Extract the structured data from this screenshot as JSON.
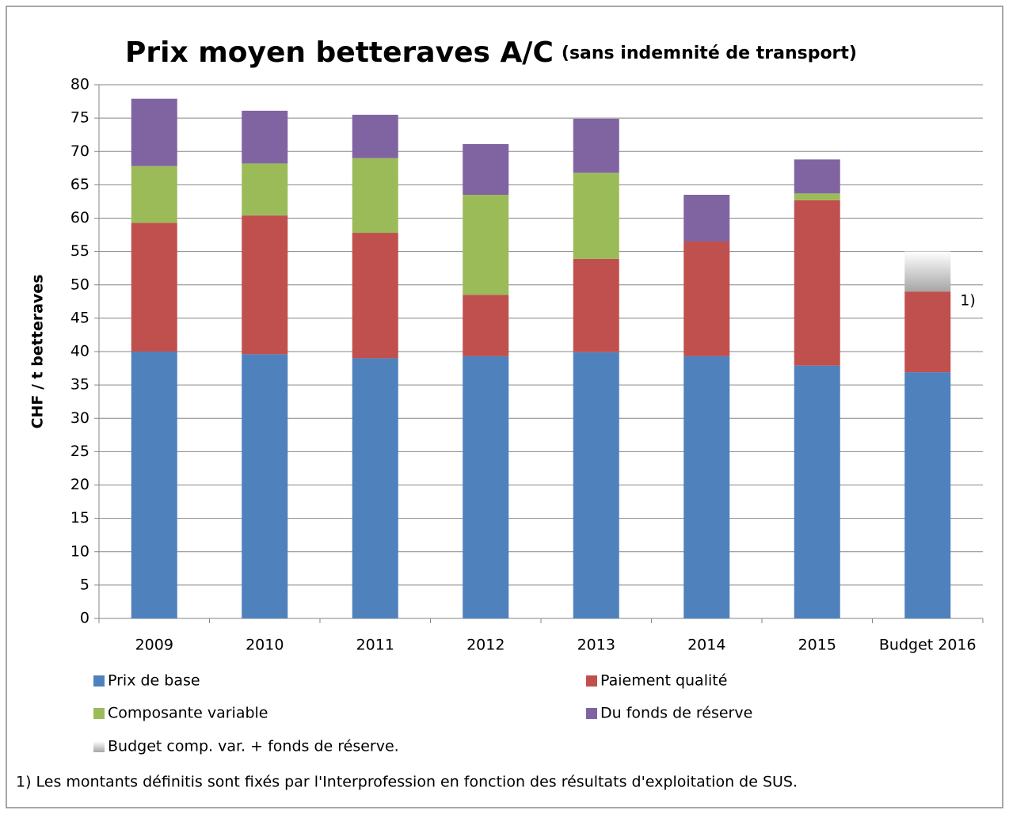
{
  "chart_data": {
    "type": "stacked_bar",
    "title": "Prix moyen betteraves A/C",
    "subtitle": "(sans indemnité de transport)",
    "y_label": "CHF / t betteraves",
    "categories": [
      "2009",
      "2010",
      "2011",
      "2012",
      "2013",
      "2014",
      "2015",
      "Budget 2016"
    ],
    "series": [
      {
        "name": "Prix de base",
        "color": "#4f81bd",
        "values": [
          40.0,
          39.6,
          39.0,
          39.3,
          39.9,
          39.3,
          37.9,
          36.9
        ]
      },
      {
        "name": "Paiement qualité",
        "color": "#c0504d",
        "values": [
          19.3,
          20.8,
          18.8,
          9.2,
          14.0,
          17.2,
          24.8,
          12.1
        ]
      },
      {
        "name": "Composante variable",
        "color": "#9bbb59",
        "values": [
          8.5,
          7.8,
          11.2,
          15.0,
          12.9,
          null,
          1.0,
          null
        ]
      },
      {
        "name": "Du fonds de réserve",
        "color": "#8064a2",
        "values": [
          10.1,
          7.9,
          6.5,
          7.6,
          8.1,
          7.0,
          5.1,
          null
        ]
      },
      {
        "name": "Budget comp. var. + fonds  de réserve.",
        "color": "#a6a6a6",
        "gradient": true,
        "values": [
          null,
          null,
          null,
          null,
          null,
          null,
          null,
          6.0
        ]
      }
    ],
    "annotation": "1)",
    "footnote": "1) Les montants définitis sont fixés par l'Interprofession en fonction des résultats d'exploitation  de SUS.",
    "ylim": [
      0,
      80
    ],
    "yticks": [
      0,
      5,
      10,
      15,
      20,
      25,
      30,
      35,
      40,
      45,
      50,
      55,
      60,
      65,
      70,
      75,
      80
    ],
    "grid": true
  }
}
